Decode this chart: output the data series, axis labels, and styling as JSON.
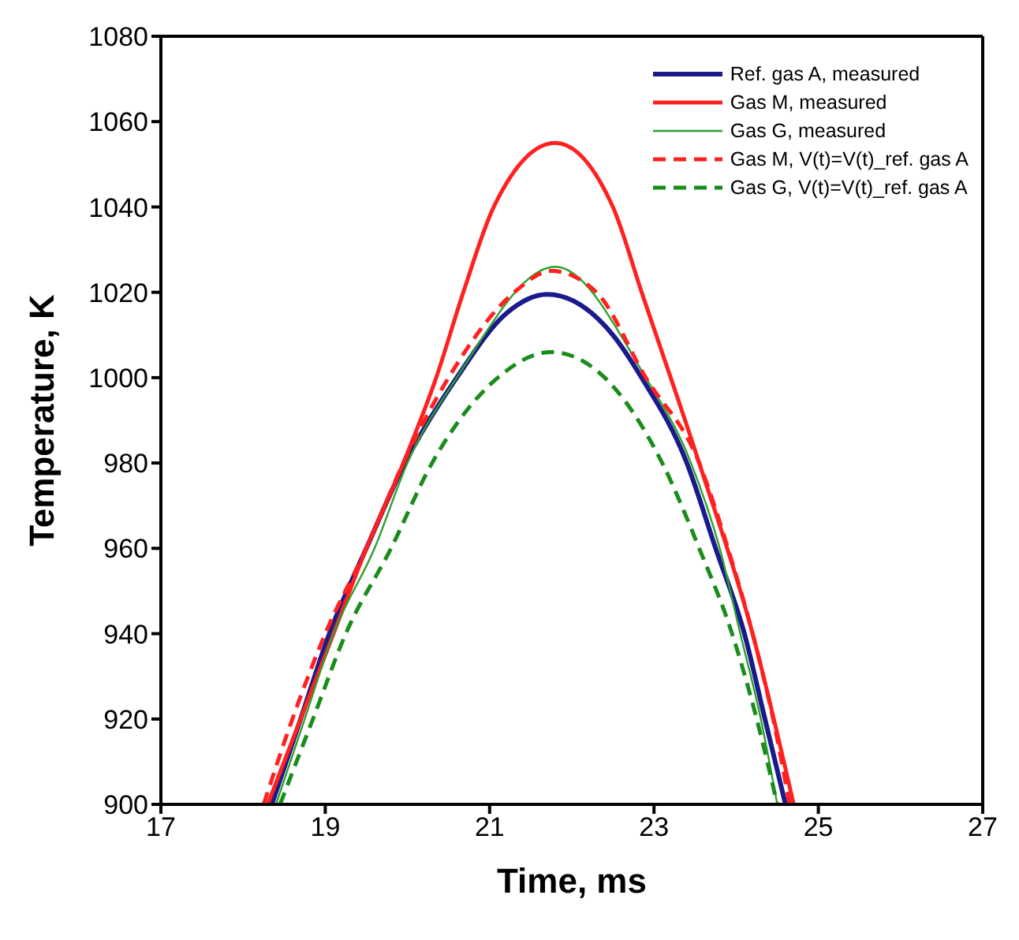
{
  "chart_data": {
    "type": "line",
    "xlabel": "Time, ms",
    "ylabel": "Temperature, K",
    "xlim": [
      17,
      27
    ],
    "xticks": [
      17,
      19,
      21,
      23,
      25,
      27
    ],
    "ylim": [
      900,
      1080
    ],
    "yticks": [
      900,
      920,
      940,
      960,
      980,
      1000,
      1020,
      1040,
      1060,
      1080
    ],
    "legend": "top right",
    "marker": "none",
    "series": [
      {
        "name": "Ref. gas A, measured",
        "color": "#1a1a8c",
        "line_style": "solid",
        "x": [
          18.35,
          18.7,
          19.05,
          19.5,
          19.97,
          20.6,
          21.2,
          21.7,
          22.5,
          22.85,
          23.4,
          23.75,
          24.1,
          24.35,
          24.6
        ],
        "values": [
          900,
          920,
          940,
          960,
          980,
          1000,
          1015,
          1019.5,
          1010,
          1000,
          980,
          960,
          940,
          920,
          900
        ]
      },
      {
        "name": "Gas M, measured",
        "color": "#ff2020",
        "line_style": "solid",
        "x": [
          18.3,
          18.7,
          19.1,
          19.5,
          19.95,
          20.35,
          20.68,
          21.05,
          21.8,
          22.5,
          22.85,
          23.55,
          24.2,
          24.7
        ],
        "values": [
          900,
          920,
          940,
          960,
          980,
          1000,
          1020,
          1040,
          1055,
          1040,
          1020,
          980,
          940,
          900
        ]
      },
      {
        "name": "Gas G, measured",
        "color": "#2ca02c",
        "line_style": "solid",
        "x": [
          18.4,
          18.75,
          19.1,
          19.6,
          20.0,
          20.6,
          21.8,
          22.9,
          23.45,
          23.8,
          24.05,
          24.3,
          24.5
        ],
        "values": [
          900,
          920,
          940,
          960,
          980,
          1000,
          1026,
          1000,
          980,
          960,
          940,
          920,
          900
        ]
      },
      {
        "name": "Gas M, V(t)=V(t)_ref. gas A",
        "color": "#ff2020",
        "line_style": "dashed",
        "x": [
          18.25,
          18.6,
          19.0,
          19.5,
          19.95,
          20.5,
          21.3,
          21.75,
          22.3,
          22.9,
          23.55,
          23.9,
          24.2,
          24.45,
          24.65
        ],
        "values": [
          900,
          920,
          940,
          960,
          980,
          1000,
          1020,
          1025,
          1020,
          1000,
          980,
          960,
          940,
          920,
          900
        ]
      },
      {
        "name": "Gas G, V(t)=V(t)_ref. gas A",
        "color": "#1a8c1a",
        "line_style": "dashed",
        "x": [
          18.45,
          18.85,
          19.25,
          19.8,
          20.3,
          21.1,
          21.75,
          22.4,
          23.1,
          23.55,
          23.95,
          24.25,
          24.5
        ],
        "values": [
          900,
          920,
          940,
          960,
          980,
          1000,
          1006,
          1000,
          980,
          960,
          940,
          920,
          900
        ]
      }
    ]
  }
}
